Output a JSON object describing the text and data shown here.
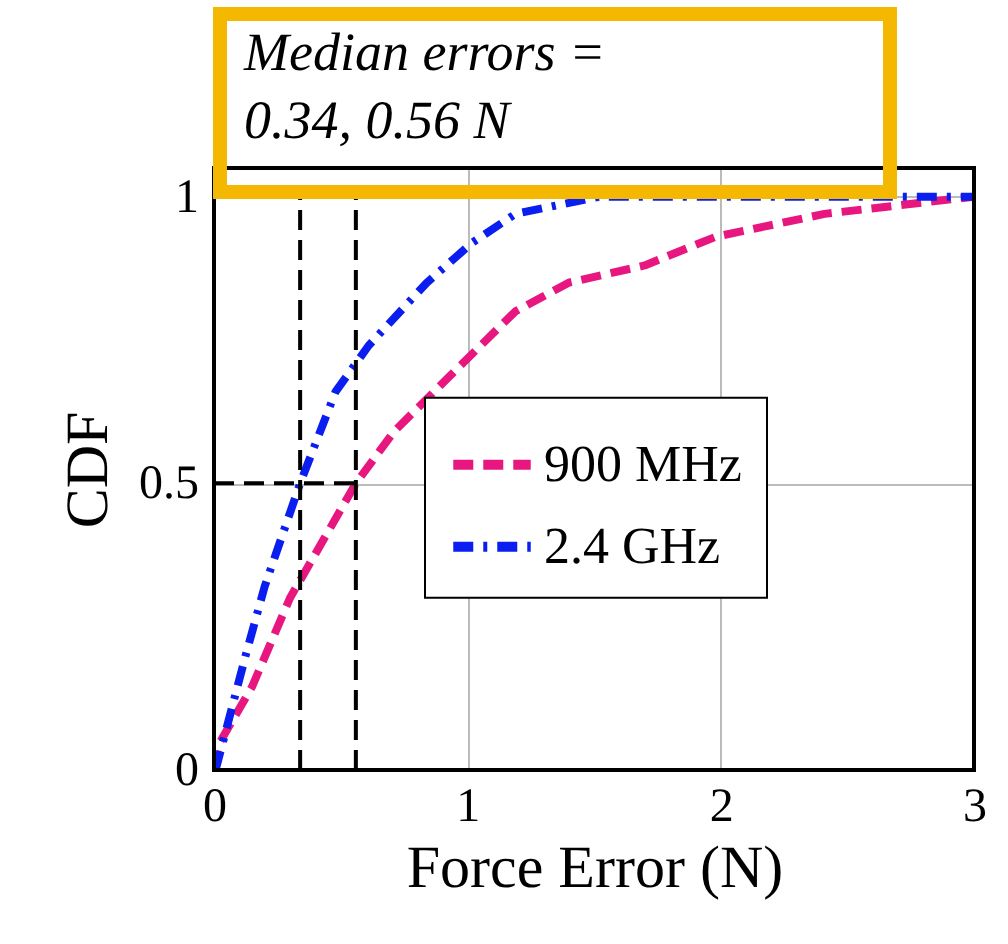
{
  "chart_data": {
    "type": "line",
    "xlabel": "Force Error (N)",
    "ylabel": "CDF",
    "annotations": [
      "Median errors =\n0.34, 0.56 N"
    ],
    "xlim": [
      0,
      3
    ],
    "xticks": [
      0,
      1,
      2,
      3
    ],
    "ylim": [
      0,
      1.05
    ],
    "yticks": [
      0,
      0.5,
      1
    ],
    "grid": true,
    "legend": "right",
    "series": [
      {
        "name": "900 MHz",
        "color": "#e8177f",
        "line_style": "dashed",
        "x": [
          0,
          0.02,
          0.15,
          0.3,
          0.56,
          0.71,
          0.96,
          1.19,
          1.4,
          1.7,
          1.98,
          2.41,
          3.0
        ],
        "values": [
          0,
          0.046,
          0.145,
          0.3,
          0.5,
          0.59,
          0.7,
          0.8,
          0.85,
          0.88,
          0.93,
          0.97,
          1.0
        ]
      },
      {
        "name": "2.4 GHz",
        "color": "#0a1ef0",
        "line_style": "dashdot",
        "x": [
          0,
          0.01,
          0.125,
          0.2,
          0.34,
          0.48,
          0.61,
          0.84,
          1.02,
          1.19,
          1.52,
          3.0
        ],
        "values": [
          0,
          0.006,
          0.2,
          0.32,
          0.5,
          0.66,
          0.74,
          0.85,
          0.92,
          0.97,
          1.0,
          1.0
        ]
      }
    ],
    "ref_lines": [
      {
        "axis": "x",
        "value": 0.34,
        "color": "#000000",
        "line_style": "dashed"
      },
      {
        "axis": "x",
        "value": 0.56,
        "color": "#000000",
        "line_style": "dashed"
      },
      {
        "axis": "y",
        "value": 0.5,
        "color": "#000000",
        "line_style": "dashed"
      }
    ]
  }
}
